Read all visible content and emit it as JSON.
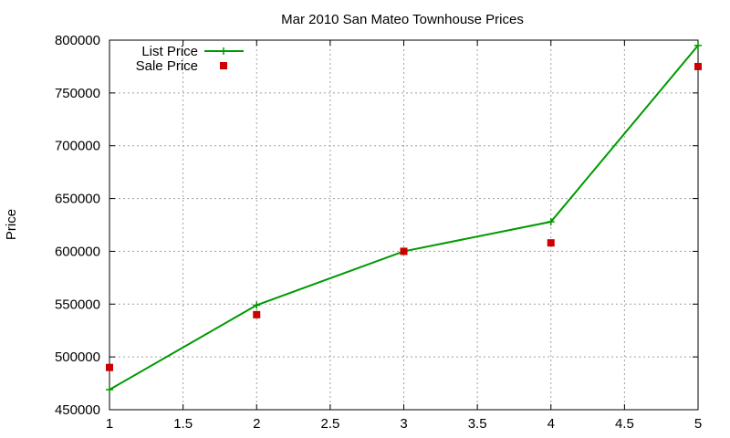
{
  "chart_data": {
    "type": "line",
    "title": "Mar 2010 San Mateo Townhouse Prices",
    "xlabel": "",
    "ylabel": "Price",
    "xlim": [
      1,
      5
    ],
    "ylim": [
      450000,
      800000
    ],
    "x_ticks": [
      1,
      1.5,
      2,
      2.5,
      3,
      3.5,
      4,
      4.5,
      5
    ],
    "x_tick_labels": [
      "1",
      "1.5",
      "2",
      "2.5",
      "3",
      "3.5",
      "4",
      "4.5",
      "5"
    ],
    "y_ticks": [
      450000,
      500000,
      550000,
      600000,
      650000,
      700000,
      750000,
      800000
    ],
    "y_tick_labels": [
      "450000",
      "500000",
      "550000",
      "600000",
      "650000",
      "700000",
      "750000",
      "800000"
    ],
    "grid": true,
    "legend_position": "top-left",
    "series": [
      {
        "name": "List Price",
        "style": "line-with-plus-markers",
        "color": "#009900",
        "x": [
          1,
          2,
          3,
          4,
          5
        ],
        "y": [
          469000,
          549000,
          600000,
          628000,
          795000
        ]
      },
      {
        "name": "Sale Price",
        "style": "square-points",
        "color": "#cc0000",
        "x": [
          1,
          2,
          3,
          4,
          5
        ],
        "y": [
          490000,
          540000,
          600000,
          608000,
          775000
        ]
      }
    ]
  }
}
